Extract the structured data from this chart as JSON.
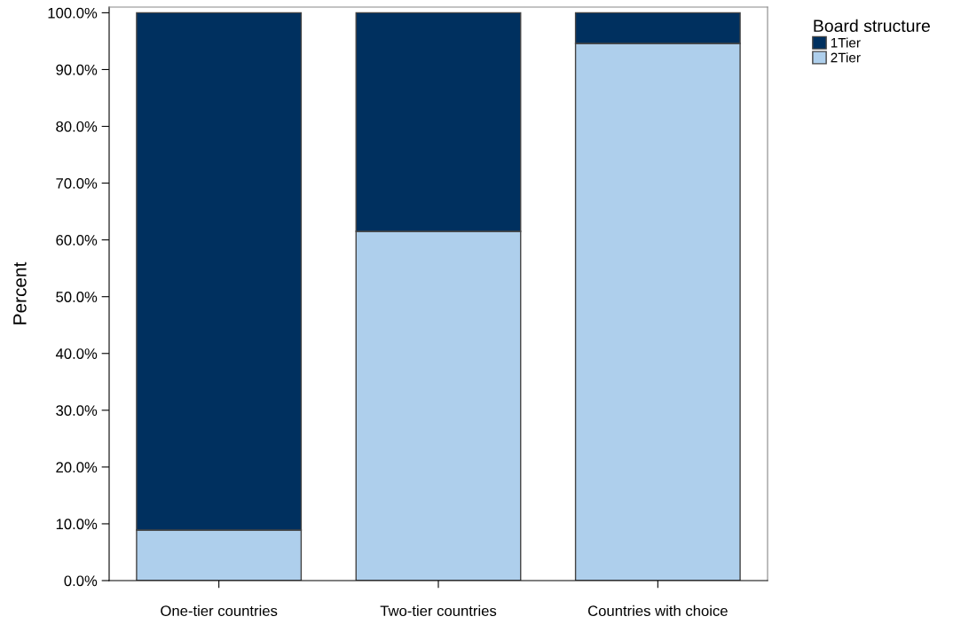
{
  "chart_data": {
    "type": "bar",
    "stacked": true,
    "ylabel": "Percent",
    "legend_title": "Board structure",
    "categories": [
      "One-tier countries",
      "Two-tier countries",
      "Countries with choice"
    ],
    "series": [
      {
        "name": "2Tier",
        "color": "#aecfec",
        "values": [
          8.9,
          61.5,
          94.6
        ]
      },
      {
        "name": "1Tier",
        "color": "#00305f",
        "values": [
          91.1,
          38.5,
          5.4
        ]
      }
    ],
    "ylim": [
      0,
      101
    ],
    "yticks": [
      {
        "value": 0,
        "label": "0.0%"
      },
      {
        "value": 10,
        "label": "10.0%"
      },
      {
        "value": 20,
        "label": "20.0%"
      },
      {
        "value": 30,
        "label": "30.0%"
      },
      {
        "value": 40,
        "label": "40.0%"
      },
      {
        "value": 50,
        "label": "50.0%"
      },
      {
        "value": 60,
        "label": "60.0%"
      },
      {
        "value": 70,
        "label": "70.0%"
      },
      {
        "value": 80,
        "label": "80.0%"
      },
      {
        "value": 90,
        "label": "90.0%"
      },
      {
        "value": 100,
        "label": "100.0%"
      }
    ],
    "legend": "top right",
    "grid": false
  }
}
